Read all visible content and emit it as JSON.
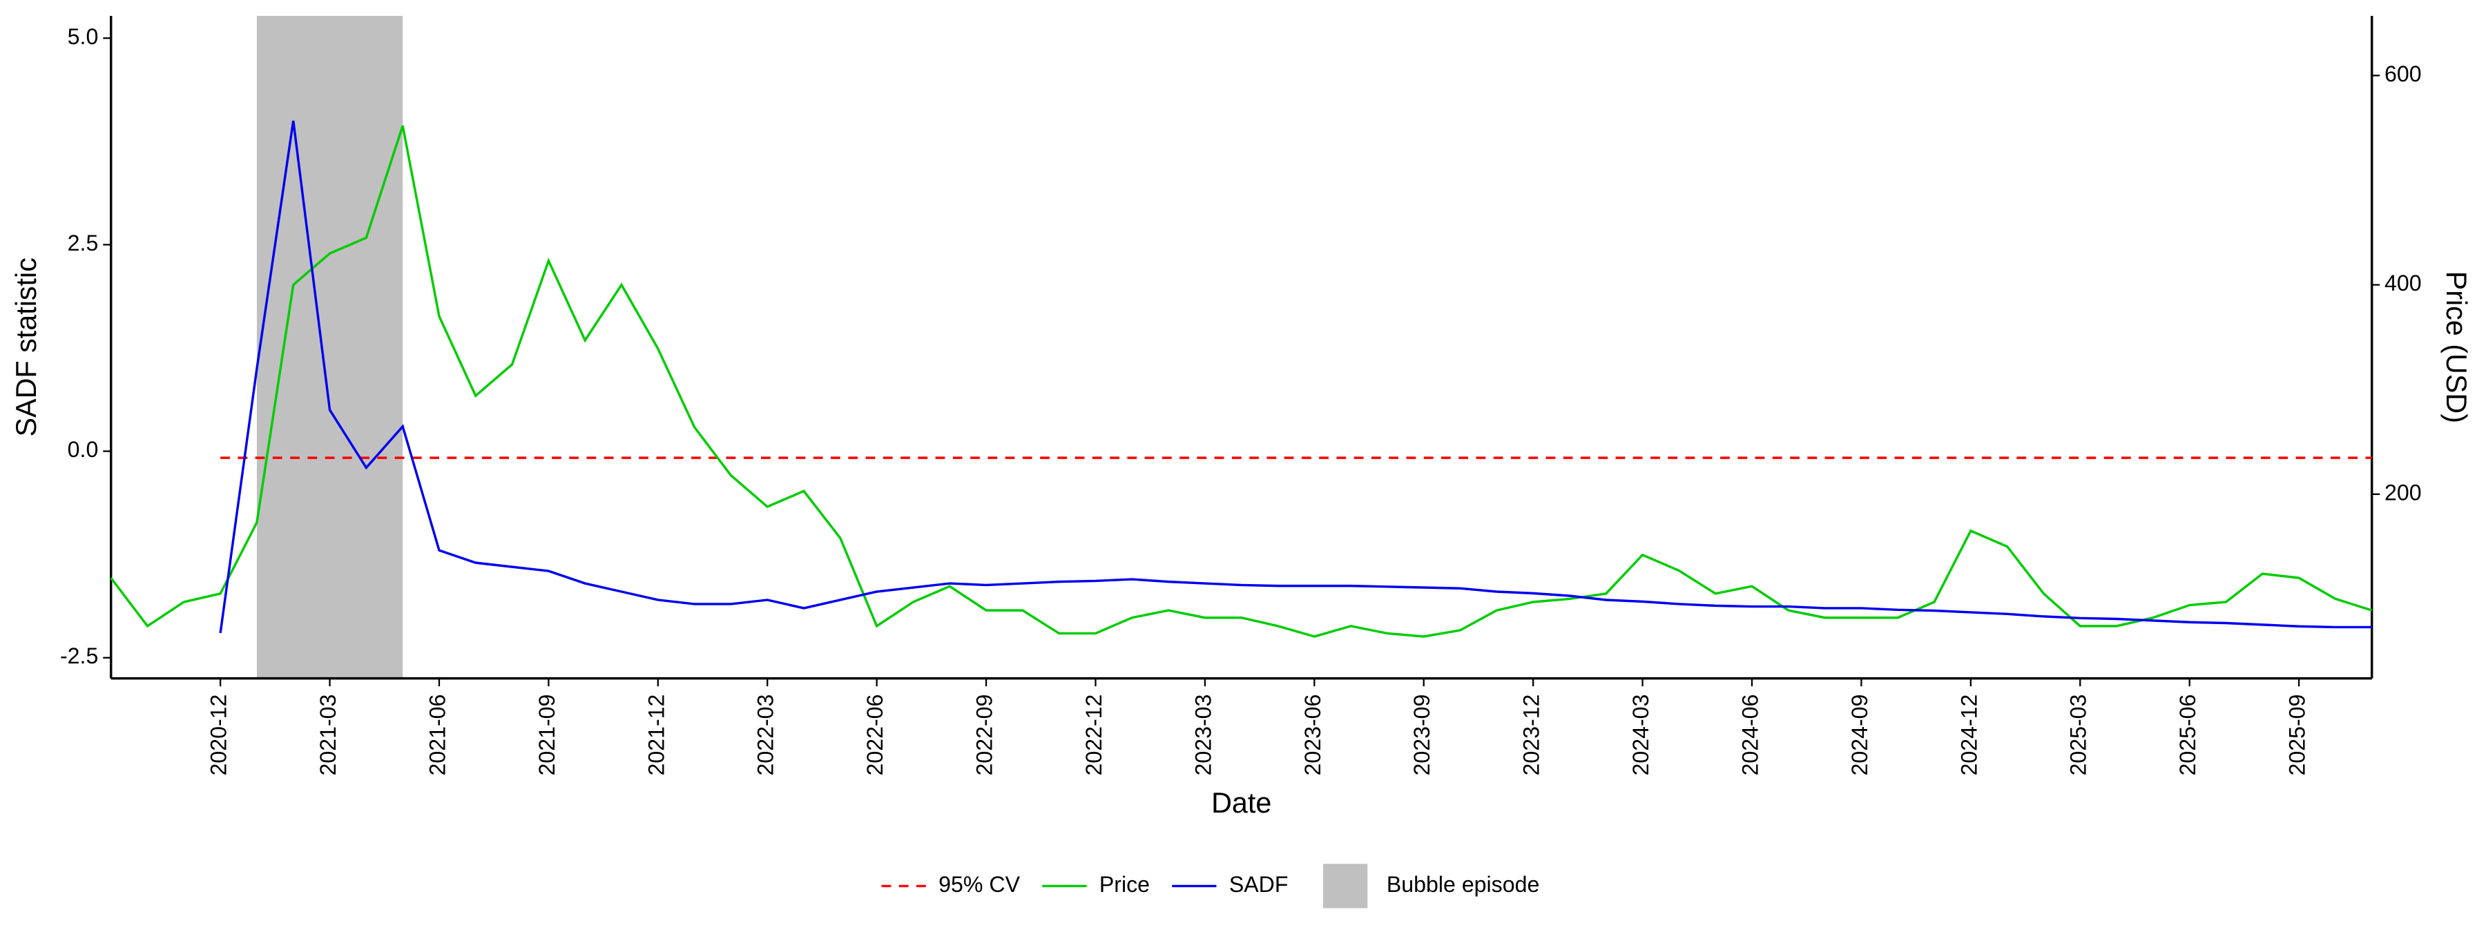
{
  "chart_data": {
    "type": "line",
    "x_label": "Date",
    "y_label": "SADF statistic",
    "y2_label": "Price (USD)",
    "x": [
      "2020-09",
      "2020-10",
      "2020-11",
      "2020-12",
      "2021-01",
      "2021-02",
      "2021-03",
      "2021-04",
      "2021-05",
      "2021-06",
      "2021-07",
      "2021-08",
      "2021-09",
      "2021-10",
      "2021-11",
      "2021-12",
      "2022-01",
      "2022-02",
      "2022-03",
      "2022-04",
      "2022-05",
      "2022-06",
      "2022-07",
      "2022-08",
      "2022-09",
      "2022-10",
      "2022-11",
      "2022-12",
      "2023-01",
      "2023-02",
      "2023-03",
      "2023-04",
      "2023-05",
      "2023-06",
      "2023-07",
      "2023-08",
      "2023-09",
      "2023-10",
      "2023-11",
      "2023-12",
      "2024-01",
      "2024-02",
      "2024-03",
      "2024-04",
      "2024-05",
      "2024-06",
      "2024-07",
      "2024-08",
      "2024-09",
      "2024-10",
      "2024-11",
      "2024-12",
      "2025-01",
      "2025-02",
      "2025-03",
      "2025-04",
      "2025-05",
      "2025-06",
      "2025-07",
      "2025-08",
      "2025-09",
      "2025-10",
      "2025-11"
    ],
    "series": [
      {
        "name": "95% CV",
        "color": "#ff0000",
        "dashed": true,
        "values": [
          null,
          null,
          null,
          -0.08,
          -0.08,
          -0.08,
          -0.08,
          -0.08,
          -0.08,
          -0.08,
          -0.08,
          -0.08,
          -0.08,
          -0.08,
          -0.08,
          -0.08,
          -0.08,
          -0.08,
          -0.08,
          -0.08,
          -0.08,
          -0.08,
          -0.08,
          -0.08,
          -0.08,
          -0.08,
          -0.08,
          -0.08,
          -0.08,
          -0.08,
          -0.08,
          -0.08,
          -0.08,
          -0.08,
          -0.08,
          -0.08,
          -0.08,
          -0.08,
          -0.08,
          -0.08,
          -0.08,
          -0.08,
          -0.08,
          -0.08,
          -0.08,
          -0.08,
          -0.08,
          -0.08,
          -0.08,
          -0.08,
          -0.08,
          -0.08,
          -0.08,
          -0.08,
          -0.08,
          -0.08,
          -0.08,
          -0.08,
          -0.08,
          -0.08,
          -0.08,
          -0.08,
          -0.08
        ]
      },
      {
        "name": "Price",
        "color": "#00cc00",
        "axis": "y2",
        "values": [
          120,
          74,
          97,
          105,
          173,
          400,
          430,
          445,
          552,
          370,
          294,
          324,
          423,
          347,
          400,
          339,
          264,
          218,
          188,
          203,
          158,
          74,
          97,
          112,
          89,
          89,
          67,
          67,
          82,
          89,
          82,
          82,
          74,
          64,
          74,
          67,
          64,
          70,
          89,
          97,
          100,
          105,
          142,
          127,
          105,
          112,
          89,
          82,
          82,
          82,
          97,
          165,
          150,
          105,
          74,
          74,
          82,
          94,
          97,
          124,
          120,
          100,
          89
        ]
      },
      {
        "name": "SADF",
        "color": "#0000ee",
        "values": [
          null,
          null,
          null,
          -2.2,
          1.0,
          4.0,
          0.5,
          -0.2,
          0.3,
          -1.2,
          -1.35,
          -1.4,
          -1.45,
          -1.6,
          -1.7,
          -1.8,
          -1.85,
          -1.85,
          -1.8,
          -1.9,
          -1.8,
          -1.7,
          -1.65,
          -1.6,
          -1.62,
          -1.6,
          -1.58,
          -1.57,
          -1.55,
          -1.58,
          -1.6,
          -1.62,
          -1.63,
          -1.63,
          -1.63,
          -1.64,
          -1.65,
          -1.66,
          -1.7,
          -1.72,
          -1.75,
          -1.8,
          -1.82,
          -1.85,
          -1.87,
          -1.88,
          -1.88,
          -1.9,
          -1.9,
          -1.92,
          -1.93,
          -1.95,
          -1.97,
          -2.0,
          -2.02,
          -2.03,
          -2.05,
          -2.07,
          -2.08,
          -2.1,
          -2.12,
          -2.13,
          -2.13
        ]
      }
    ],
    "bubble_label": "Bubble episode",
    "bubble_color": "#c0c0c0",
    "bubble_episodes": [
      {
        "start": "2021-01",
        "end": "2021-05"
      }
    ],
    "xlim": [
      "2020-09",
      "2025-11"
    ],
    "xticks": [
      "2020-12",
      "2021-03",
      "2021-06",
      "2021-09",
      "2021-12",
      "2022-03",
      "2022-06",
      "2022-09",
      "2022-12",
      "2023-03",
      "2023-06",
      "2023-09",
      "2023-12",
      "2024-03",
      "2024-06",
      "2024-09",
      "2024-12",
      "2025-03",
      "2025-06",
      "2025-09"
    ],
    "ylim": [
      -2.75,
      5.27
    ],
    "yticks": [
      {
        "value": -2.5,
        "label": "-2.5"
      },
      {
        "value": 0,
        "label": "0.0"
      },
      2.5,
      {
        "value": 5,
        "label": "5.0"
      }
    ],
    "y2lim": [
      24,
      657
    ],
    "y2ticks": [
      200,
      400,
      600
    ],
    "legend": "bottom"
  }
}
